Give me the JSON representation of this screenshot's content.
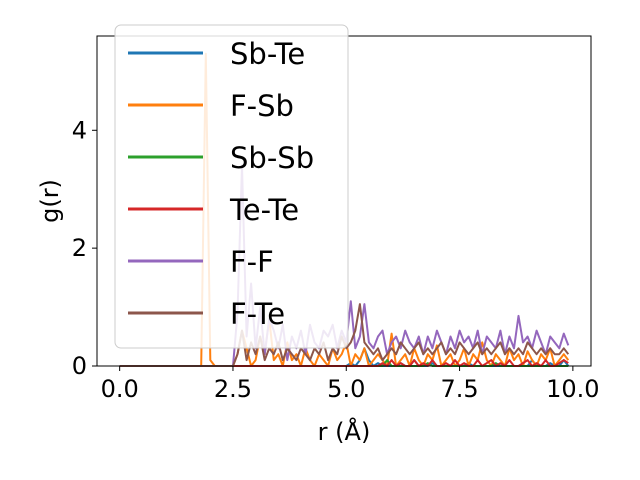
{
  "chart_data": {
    "type": "line",
    "title": "",
    "xlabel": "r (Å)",
    "ylabel": "g(r)",
    "xlim": [
      -0.5,
      10.4
    ],
    "ylim": [
      0,
      5.6
    ],
    "xticks": [
      0.0,
      2.5,
      5.0,
      7.5,
      10.0
    ],
    "xtick_labels": [
      "0.0",
      "2.5",
      "5.0",
      "7.5",
      "10.0"
    ],
    "yticks": [
      0,
      2,
      4
    ],
    "ytick_labels": [
      "0",
      "2",
      "4"
    ],
    "grid": false,
    "legend_position": "upper-left",
    "x": [
      0,
      0.1,
      0.2,
      0.3,
      0.4,
      0.5,
      0.6,
      0.7,
      0.8,
      0.9,
      1.0,
      1.1,
      1.2,
      1.3,
      1.4,
      1.5,
      1.6,
      1.7,
      1.8,
      1.9,
      2.0,
      2.1,
      2.2,
      2.3,
      2.4,
      2.5,
      2.6,
      2.7,
      2.8,
      2.9,
      3.0,
      3.1,
      3.2,
      3.3,
      3.4,
      3.5,
      3.6,
      3.7,
      3.8,
      3.9,
      4.0,
      4.1,
      4.2,
      4.3,
      4.4,
      4.5,
      4.6,
      4.7,
      4.8,
      4.9,
      5.0,
      5.1,
      5.2,
      5.3,
      5.4,
      5.5,
      5.6,
      5.7,
      5.8,
      5.9,
      6.0,
      6.1,
      6.2,
      6.3,
      6.4,
      6.5,
      6.6,
      6.7,
      6.8,
      6.9,
      7.0,
      7.1,
      7.2,
      7.3,
      7.4,
      7.5,
      7.6,
      7.7,
      7.8,
      7.9,
      8.0,
      8.1,
      8.2,
      8.3,
      8.4,
      8.5,
      8.6,
      8.7,
      8.8,
      8.9,
      9.0,
      9.1,
      9.2,
      9.3,
      9.4,
      9.5,
      9.6,
      9.7,
      9.8,
      9.9
    ],
    "series": [
      {
        "name": "Sb-Te",
        "color": "#1f77b4",
        "values": [
          0,
          0,
          0,
          0,
          0,
          0,
          0,
          0,
          0,
          0,
          0,
          0,
          0,
          0,
          0,
          0,
          0,
          0,
          0,
          0,
          0,
          0,
          0,
          0,
          0,
          0,
          0,
          0,
          0,
          0,
          0,
          0,
          0,
          0,
          0,
          0,
          0,
          0,
          0,
          0,
          0,
          0,
          0,
          0,
          0,
          0,
          0,
          0,
          0,
          0,
          0,
          0.05,
          0,
          0.1,
          0.3,
          0.1,
          0,
          0.05,
          0,
          0,
          0,
          0,
          0.05,
          0,
          0,
          0.1,
          0,
          0,
          0,
          0.05,
          0,
          0,
          0,
          0,
          0,
          0,
          0,
          0.05,
          0,
          0,
          0,
          0,
          0,
          0,
          0,
          0,
          0,
          0,
          0,
          0,
          0,
          0.1,
          0,
          0,
          0,
          0.05,
          0,
          0,
          0.1,
          0
        ]
      },
      {
        "name": "F-Sb",
        "color": "#ff7f0e",
        "values": [
          0,
          0,
          0,
          0,
          0,
          0,
          0,
          0,
          0,
          0,
          0,
          0,
          0,
          0,
          0,
          0,
          0,
          0,
          0,
          5.3,
          0.1,
          0,
          0,
          0,
          0,
          0,
          0.2,
          0.6,
          0.3,
          0,
          0.1,
          0.5,
          0.2,
          0.8,
          0.1,
          0.2,
          0,
          0.4,
          0.1,
          0.2,
          0,
          0.3,
          0.1,
          0,
          0.2,
          0.1,
          0,
          0.3,
          0.1,
          0.2,
          0.4,
          0,
          0.2,
          0.1,
          0.3,
          0,
          0.1,
          0.2,
          0.1,
          0,
          0.55,
          0,
          0.1,
          0.2,
          0,
          0.3,
          0.1,
          0,
          0.2,
          0.1,
          0.35,
          0,
          0.1,
          0.2,
          0,
          0.1,
          0.3,
          0,
          0.2,
          0.1,
          0.4,
          0.1,
          0,
          0.2,
          0.1,
          0,
          0.3,
          0.1,
          0.2,
          0,
          0.25,
          0.1,
          0,
          0.2,
          0.1,
          0.3,
          0,
          0.1,
          0.2,
          0.1
        ]
      },
      {
        "name": "Sb-Sb",
        "color": "#2ca02c",
        "values": [
          0,
          0,
          0,
          0,
          0,
          0,
          0,
          0,
          0,
          0,
          0,
          0,
          0,
          0,
          0,
          0,
          0,
          0,
          0,
          0,
          0,
          0,
          0,
          0,
          0,
          0,
          0,
          0,
          0,
          0,
          0,
          0,
          0,
          0,
          0,
          0,
          0,
          0,
          0,
          0,
          0,
          0,
          0,
          0,
          0,
          0,
          0,
          0,
          0,
          0,
          0,
          0,
          0,
          0,
          0,
          0,
          0,
          0,
          0,
          0.1,
          0,
          0,
          0,
          0,
          0,
          0,
          0,
          0,
          0.05,
          0,
          0,
          0,
          0,
          0,
          0,
          0,
          0,
          0,
          0,
          0,
          0,
          0,
          0,
          0.05,
          0,
          0,
          0,
          0,
          0,
          0,
          0,
          0,
          0,
          0,
          0,
          0,
          0,
          0,
          0,
          0
        ]
      },
      {
        "name": "Te-Te",
        "color": "#d62728",
        "values": [
          0,
          0,
          0,
          0,
          0,
          0,
          0,
          0,
          0,
          0,
          0,
          0,
          0,
          0,
          0,
          0,
          0,
          0,
          0,
          0,
          0,
          0,
          0,
          0,
          0,
          0,
          0,
          0,
          0,
          0,
          0,
          0,
          0,
          0,
          0,
          0,
          0,
          0,
          0,
          0,
          0,
          0,
          0,
          0,
          0,
          0,
          0,
          0,
          0,
          0,
          0,
          0,
          0,
          0,
          0,
          0,
          0,
          0,
          0.05,
          0,
          0.1,
          0,
          0.05,
          0,
          0,
          0.1,
          0,
          0.05,
          0,
          0.1,
          0,
          0,
          0.05,
          0,
          0.1,
          0,
          0.05,
          0,
          0,
          0.1,
          0,
          0.05,
          0.1,
          0,
          0.05,
          0,
          0.1,
          0,
          0,
          0.05,
          0.1,
          0,
          0.05,
          0,
          0.1,
          0,
          0,
          0.05,
          0.1,
          0.05
        ]
      },
      {
        "name": "F-F",
        "color": "#9467bd",
        "values": [
          0,
          0,
          0,
          0,
          0,
          0,
          0,
          0,
          0,
          0,
          0,
          0,
          0,
          0,
          0,
          0,
          0,
          0,
          0,
          0,
          0,
          0,
          0,
          0,
          0,
          0,
          0.9,
          3.4,
          0.5,
          1.4,
          0.3,
          1.0,
          0.2,
          0.8,
          0.6,
          0.3,
          0.7,
          0.1,
          0.5,
          0.3,
          0.6,
          0.2,
          0.7,
          0.4,
          0.3,
          0.6,
          0.5,
          0.7,
          0.3,
          0.6,
          0.4,
          1.1,
          0.3,
          0.5,
          1.05,
          0.4,
          0.3,
          0.5,
          0.6,
          0.2,
          0.4,
          0.5,
          0.3,
          0.6,
          0.4,
          0.3,
          0.5,
          0.2,
          0.5,
          0.3,
          0.6,
          0.4,
          0.2,
          0.5,
          0.3,
          0.6,
          0.4,
          0.5,
          0.3,
          0.6,
          0.2,
          0.5,
          0.4,
          0.3,
          0.6,
          0.2,
          0.5,
          0.3,
          0.85,
          0.4,
          0.5,
          0.3,
          0.6,
          0.4,
          0.2,
          0.5,
          0.4,
          0.3,
          0.55,
          0.35
        ]
      },
      {
        "name": "F-Te",
        "color": "#8c564b",
        "values": [
          0,
          0,
          0,
          0,
          0,
          0,
          0,
          0,
          0,
          0,
          0,
          0,
          0,
          0,
          0,
          0,
          0,
          0,
          0,
          0,
          0,
          0,
          0,
          0,
          0,
          0,
          0.2,
          0.6,
          0.1,
          0.4,
          0.2,
          0.5,
          0.1,
          0.3,
          0.2,
          0.4,
          0.1,
          0.3,
          0.2,
          0.1,
          0.3,
          0.2,
          0.1,
          0.3,
          0.2,
          0.4,
          0.1,
          0.3,
          0.2,
          0.5,
          0.3,
          0.4,
          0.6,
          1.05,
          0.4,
          0.3,
          0.2,
          0.3,
          0.1,
          0.2,
          0.3,
          0.2,
          0.4,
          0.3,
          0.2,
          0.3,
          0.4,
          0.2,
          0.3,
          0.2,
          0.3,
          0.4,
          0.2,
          0.3,
          0.2,
          0.4,
          0.3,
          0.2,
          0.3,
          0.4,
          0.2,
          0.3,
          0.2,
          0.3,
          0.4,
          0.2,
          0.3,
          0.2,
          0.3,
          0.2,
          0.4,
          0.3,
          0.2,
          0.3,
          0.2,
          0.3,
          0.2,
          0.2,
          0.3,
          0.2
        ]
      }
    ]
  }
}
